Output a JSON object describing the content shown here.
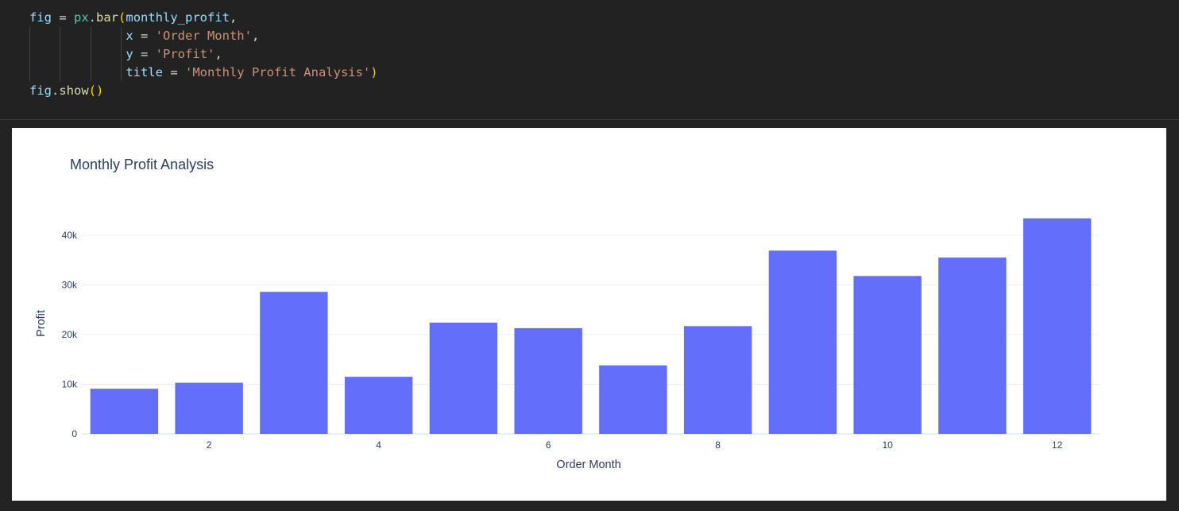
{
  "code_cell": {
    "lines": [
      [
        {
          "t": "fig",
          "c": "var"
        },
        {
          "t": " = ",
          "c": "op"
        },
        {
          "t": "px",
          "c": "mod"
        },
        {
          "t": ".",
          "c": "op"
        },
        {
          "t": "bar",
          "c": "fn"
        },
        {
          "t": "(",
          "c": "br"
        },
        {
          "t": "monthly_profit",
          "c": "var"
        },
        {
          "t": ",",
          "c": "op"
        }
      ],
      [
        {
          "t": "             x",
          "c": "var"
        },
        {
          "t": " = ",
          "c": "op"
        },
        {
          "t": "'Order Month'",
          "c": "str"
        },
        {
          "t": ",",
          "c": "op"
        }
      ],
      [
        {
          "t": "             y",
          "c": "var"
        },
        {
          "t": " = ",
          "c": "op"
        },
        {
          "t": "'Profit'",
          "c": "str"
        },
        {
          "t": ",",
          "c": "op"
        }
      ],
      [
        {
          "t": "             title",
          "c": "var"
        },
        {
          "t": " = ",
          "c": "op"
        },
        {
          "t": "'Monthly Profit Analysis'",
          "c": "str"
        },
        {
          "t": ")",
          "c": "br"
        }
      ],
      [
        {
          "t": "fig",
          "c": "var"
        },
        {
          "t": ".",
          "c": "op"
        },
        {
          "t": "show",
          "c": "fn"
        },
        {
          "t": "()",
          "c": "br"
        }
      ]
    ]
  },
  "chart_data": {
    "type": "bar",
    "title": "Monthly Profit Analysis",
    "xlabel": "Order Month",
    "ylabel": "Profit",
    "x": [
      1,
      2,
      3,
      4,
      5,
      6,
      7,
      8,
      9,
      10,
      11,
      12
    ],
    "values": [
      9100,
      10300,
      28600,
      11500,
      22400,
      21300,
      13800,
      21700,
      36900,
      31800,
      35500,
      43400
    ],
    "xlim": [
      0.5,
      12.5
    ],
    "ylim": [
      0,
      45600
    ],
    "x_ticks": [
      2,
      4,
      6,
      8,
      10,
      12
    ],
    "x_tick_labels": [
      "2",
      "4",
      "6",
      "8",
      "10",
      "12"
    ],
    "y_ticks": [
      0,
      10000,
      20000,
      30000,
      40000
    ],
    "y_tick_labels": [
      "0",
      "10k",
      "20k",
      "30k",
      "40k"
    ],
    "bar_color": "#636efa",
    "grid": true,
    "legend": "none"
  }
}
